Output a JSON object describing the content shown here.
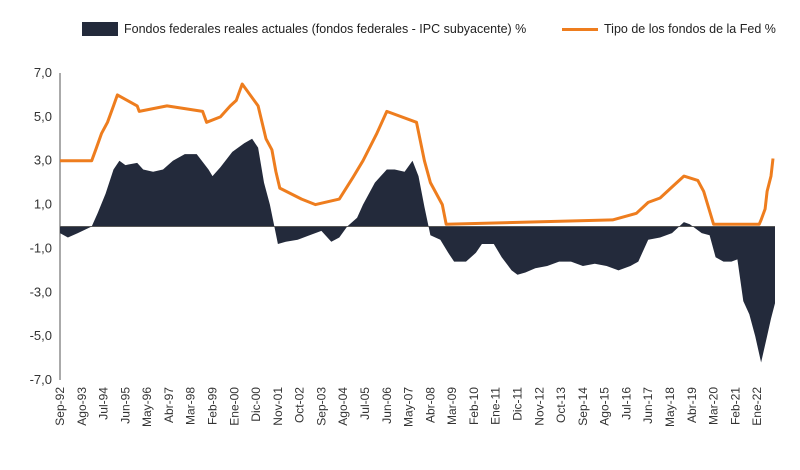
{
  "colors": {
    "real_area": "#232a3b",
    "fed_line": "#ee7d1e",
    "axis": "#555555",
    "background": "#ffffff"
  },
  "legend": {
    "real_label": "Fondos federales reales actuales (fondos federales - IPC subyacente) %",
    "fed_label": "Tipo de los fondos de la Fed %"
  },
  "chart_data": {
    "type": "area",
    "x_unit": "month",
    "x_range": [
      "1992-09",
      "2022-10"
    ],
    "ylim": [
      -7,
      7
    ],
    "y_ticks": [
      "7,0",
      "5,0",
      "3,0",
      "1,0",
      "-1,0",
      "-3,0",
      "-5,0",
      "-7,0"
    ],
    "y_tick_values": [
      7,
      5,
      3,
      1,
      -1,
      -3,
      -5,
      -7
    ],
    "x_tick_labels": [
      "Sep-92",
      "Ago-93",
      "Jul-94",
      "Jun-95",
      "May-96",
      "Abr-97",
      "Mar-98",
      "Feb-99",
      "Ene-00",
      "Dic-00",
      "Nov-01",
      "Oct-02",
      "Sep-03",
      "Ago-04",
      "Jul-05",
      "Jun-06",
      "May-07",
      "Abr-08",
      "Mar-09",
      "Feb-10",
      "Ene-11",
      "Dic-11",
      "Nov-12",
      "Oct-13",
      "Sep-14",
      "Ago-15",
      "Jul-16",
      "Jun-17",
      "May-18",
      "Abr-19",
      "Mar-20",
      "Feb-21",
      "Ene-22"
    ],
    "x_tick_dates": [
      "1992-09",
      "1993-08",
      "1994-07",
      "1995-06",
      "1996-05",
      "1997-04",
      "1998-03",
      "1999-02",
      "2000-01",
      "2000-12",
      "2001-11",
      "2002-10",
      "2003-09",
      "2004-08",
      "2005-07",
      "2006-06",
      "2007-05",
      "2008-04",
      "2009-03",
      "2010-02",
      "2011-01",
      "2011-12",
      "2012-11",
      "2013-10",
      "2014-09",
      "2015-08",
      "2016-07",
      "2017-06",
      "2018-05",
      "2019-04",
      "2020-03",
      "2021-02",
      "2022-01"
    ],
    "series": [
      {
        "name": "Fondos federales reales actuales (fondos federales - IPC subyacente) %",
        "kind": "area",
        "points": [
          [
            "1992-09",
            -0.3
          ],
          [
            "1993-01",
            -0.5
          ],
          [
            "1993-06",
            -0.3
          ],
          [
            "1994-01",
            0.0
          ],
          [
            "1994-04",
            0.6
          ],
          [
            "1994-08",
            1.5
          ],
          [
            "1994-12",
            2.6
          ],
          [
            "1995-03",
            3.0
          ],
          [
            "1995-06",
            2.8
          ],
          [
            "1995-12",
            2.9
          ],
          [
            "1996-03",
            2.6
          ],
          [
            "1996-08",
            2.5
          ],
          [
            "1997-01",
            2.6
          ],
          [
            "1997-06",
            3.0
          ],
          [
            "1997-12",
            3.3
          ],
          [
            "1998-06",
            3.3
          ],
          [
            "1998-12",
            2.6
          ],
          [
            "1999-02",
            2.3
          ],
          [
            "1999-06",
            2.7
          ],
          [
            "1999-12",
            3.4
          ],
          [
            "2000-06",
            3.8
          ],
          [
            "2000-10",
            4.0
          ],
          [
            "2001-01",
            3.6
          ],
          [
            "2001-04",
            2.0
          ],
          [
            "2001-07",
            1.0
          ],
          [
            "2001-09",
            0.1
          ],
          [
            "2001-11",
            -0.8
          ],
          [
            "2002-03",
            -0.7
          ],
          [
            "2002-09",
            -0.6
          ],
          [
            "2003-03",
            -0.4
          ],
          [
            "2003-09",
            -0.2
          ],
          [
            "2004-02",
            -0.7
          ],
          [
            "2004-06",
            -0.5
          ],
          [
            "2004-10",
            0.0
          ],
          [
            "2005-03",
            0.4
          ],
          [
            "2005-06",
            1.0
          ],
          [
            "2005-12",
            2.0
          ],
          [
            "2006-06",
            2.6
          ],
          [
            "2006-10",
            2.6
          ],
          [
            "2007-03",
            2.5
          ],
          [
            "2007-07",
            3.0
          ],
          [
            "2007-10",
            2.3
          ],
          [
            "2008-01",
            0.9
          ],
          [
            "2008-04",
            -0.4
          ],
          [
            "2008-09",
            -0.6
          ],
          [
            "2009-01",
            -1.2
          ],
          [
            "2009-04",
            -1.6
          ],
          [
            "2009-10",
            -1.6
          ],
          [
            "2010-03",
            -1.2
          ],
          [
            "2010-06",
            -0.8
          ],
          [
            "2010-12",
            -0.8
          ],
          [
            "2011-04",
            -1.4
          ],
          [
            "2011-09",
            -2.0
          ],
          [
            "2011-12",
            -2.2
          ],
          [
            "2012-04",
            -2.1
          ],
          [
            "2012-09",
            -1.9
          ],
          [
            "2013-03",
            -1.8
          ],
          [
            "2013-09",
            -1.6
          ],
          [
            "2014-03",
            -1.6
          ],
          [
            "2014-09",
            -1.8
          ],
          [
            "2015-03",
            -1.7
          ],
          [
            "2015-09",
            -1.8
          ],
          [
            "2016-03",
            -2.0
          ],
          [
            "2016-09",
            -1.8
          ],
          [
            "2017-01",
            -1.6
          ],
          [
            "2017-06",
            -0.6
          ],
          [
            "2017-12",
            -0.5
          ],
          [
            "2018-06",
            -0.3
          ],
          [
            "2018-12",
            0.2
          ],
          [
            "2019-03",
            0.1
          ],
          [
            "2019-09",
            -0.3
          ],
          [
            "2020-01",
            -0.4
          ],
          [
            "2020-04",
            -1.4
          ],
          [
            "2020-08",
            -1.6
          ],
          [
            "2020-12",
            -1.6
          ],
          [
            "2021-03",
            -1.5
          ],
          [
            "2021-06",
            -3.4
          ],
          [
            "2021-09",
            -4.0
          ],
          [
            "2021-12",
            -5.0
          ],
          [
            "2022-03",
            -6.2
          ],
          [
            "2022-06",
            -5.0
          ],
          [
            "2022-08",
            -4.2
          ],
          [
            "2022-10",
            -3.5
          ]
        ]
      },
      {
        "name": "Tipo de los fondos de la Fed %",
        "kind": "line",
        "points": [
          [
            "1992-09",
            3.0
          ],
          [
            "1994-01",
            3.0
          ],
          [
            "1994-03",
            3.5
          ],
          [
            "1994-06",
            4.25
          ],
          [
            "1994-09",
            4.75
          ],
          [
            "1994-12",
            5.5
          ],
          [
            "1995-02",
            6.0
          ],
          [
            "1995-07",
            5.75
          ],
          [
            "1995-12",
            5.5
          ],
          [
            "1996-01",
            5.25
          ],
          [
            "1997-03",
            5.5
          ],
          [
            "1998-09",
            5.25
          ],
          [
            "1998-11",
            4.75
          ],
          [
            "1999-06",
            5.0
          ],
          [
            "1999-11",
            5.5
          ],
          [
            "2000-02",
            5.75
          ],
          [
            "2000-05",
            6.5
          ],
          [
            "2001-01",
            5.5
          ],
          [
            "2001-05",
            4.0
          ],
          [
            "2001-08",
            3.5
          ],
          [
            "2001-10",
            2.5
          ],
          [
            "2001-12",
            1.75
          ],
          [
            "2002-11",
            1.25
          ],
          [
            "2003-06",
            1.0
          ],
          [
            "2004-06",
            1.25
          ],
          [
            "2005-01",
            2.25
          ],
          [
            "2005-06",
            3.0
          ],
          [
            "2006-01",
            4.25
          ],
          [
            "2006-06",
            5.25
          ],
          [
            "2007-09",
            4.75
          ],
          [
            "2008-01",
            3.0
          ],
          [
            "2008-04",
            2.0
          ],
          [
            "2008-10",
            1.0
          ],
          [
            "2008-12",
            0.1
          ],
          [
            "2015-12",
            0.3
          ],
          [
            "2016-12",
            0.6
          ],
          [
            "2017-06",
            1.1
          ],
          [
            "2017-12",
            1.3
          ],
          [
            "2018-06",
            1.8
          ],
          [
            "2018-12",
            2.3
          ],
          [
            "2019-07",
            2.1
          ],
          [
            "2019-10",
            1.6
          ],
          [
            "2020-03",
            0.1
          ],
          [
            "2022-02",
            0.1
          ],
          [
            "2022-03",
            0.3
          ],
          [
            "2022-05",
            0.8
          ],
          [
            "2022-06",
            1.6
          ],
          [
            "2022-08",
            2.3
          ],
          [
            "2022-09",
            3.1
          ]
        ]
      }
    ]
  }
}
